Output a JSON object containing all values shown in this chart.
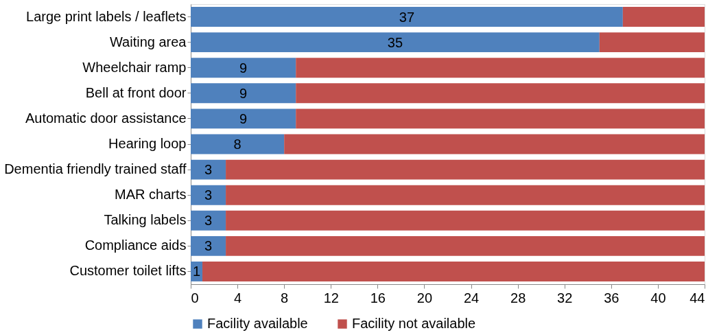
{
  "chart_data": {
    "type": "bar",
    "orientation": "horizontal",
    "stacked": true,
    "categories": [
      "Large print labels / leaflets",
      "Waiting area",
      "Wheelchair ramp",
      "Bell at front door",
      "Automatic door assistance",
      "Hearing loop",
      "Dementia friendly trained staff",
      "MAR charts",
      "Talking labels",
      "Compliance aids",
      "Customer toilet lifts"
    ],
    "series": [
      {
        "name": "Facility available",
        "color": "#4f81bd",
        "values": [
          37,
          35,
          9,
          9,
          9,
          8,
          3,
          3,
          3,
          3,
          1
        ],
        "value_labels": [
          "37",
          "35",
          "9",
          "9",
          "9",
          "8",
          "3",
          "3",
          "3",
          "3",
          "1"
        ]
      },
      {
        "name": "Facility not available",
        "color": "#c0504d",
        "values": [
          7,
          9,
          35,
          35,
          35,
          36,
          41,
          41,
          41,
          41,
          43
        ]
      }
    ],
    "xlim": [
      0,
      44
    ],
    "xticks": [
      0,
      4,
      8,
      12,
      16,
      20,
      24,
      28,
      32,
      36,
      40,
      44
    ],
    "grid": false,
    "legend": "bottom"
  }
}
